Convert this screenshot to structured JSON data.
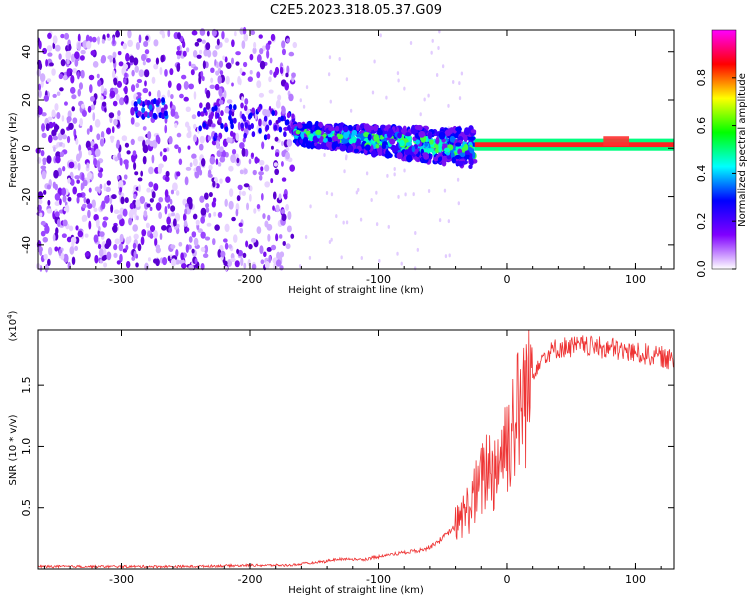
{
  "title": "C2E5.2023.318.05.37.G09",
  "chart_data": [
    {
      "type": "heatmap",
      "xlabel": "Height of straight line (km)",
      "ylabel": "Frequency (Hz)",
      "xlim": [
        -365,
        130
      ],
      "ylim": [
        -50,
        49
      ],
      "xticks": [
        -300,
        -200,
        -100,
        0,
        100
      ],
      "yticks": [
        -40,
        -20,
        0,
        20,
        40
      ],
      "colorbar": {
        "label": "Normalized spectral amplitude",
        "range": [
          0,
          1
        ],
        "ticks": [
          "0.0",
          "0.2",
          "0.4",
          "0.6",
          "0.8"
        ],
        "colors": [
          "#ffffff",
          "#8000ff",
          "#0000ff",
          "#00ffff",
          "#00ff00",
          "#ffff00",
          "#ff0000",
          "#ff00ff"
        ]
      },
      "regions": [
        {
          "x": [
            -365,
            -165
          ],
          "freq": [
            -50,
            49
          ],
          "amplitude": 0.15,
          "note": "broadband noise"
        },
        {
          "x": [
            -290,
            -265
          ],
          "freq": [
            13,
            20
          ],
          "amplitude": 0.3
        },
        {
          "x": [
            -165,
            -25
          ],
          "freq": [
            -12,
            12
          ],
          "amplitude": 0.45
        },
        {
          "x": [
            -25,
            130
          ],
          "freq": [
            0.5,
            2.5
          ],
          "amplitude": 0.95,
          "note": "carrier line"
        }
      ]
    },
    {
      "type": "line",
      "xlabel": "Height of straight line (km)",
      "ylabel": "SNR (10 * v/v)",
      "yscale_label": "(x10",
      "yscale_exp": "4",
      "yscale_close": ")",
      "xlim": [
        -365,
        130
      ],
      "ylim": [
        0,
        1.95
      ],
      "xticks": [
        -300,
        -200,
        -100,
        0,
        100
      ],
      "yticks": [
        "0.5",
        "1.0",
        "1.5"
      ],
      "ytick_values": [
        0.5,
        1.0,
        1.5
      ],
      "color": "#ee3333",
      "series": [
        {
          "x": [
            -365,
            -340,
            -300,
            -250,
            -200,
            -170,
            -150,
            -130,
            -110,
            -90,
            -70,
            -60,
            -50,
            -40,
            -30,
            -20,
            -15,
            -10,
            -5,
            0,
            5,
            10,
            15,
            20,
            25,
            30,
            40,
            60,
            80,
            90,
            100,
            110,
            120,
            130
          ],
          "values": [
            0.02,
            0.02,
            0.02,
            0.02,
            0.03,
            0.03,
            0.05,
            0.08,
            0.08,
            0.12,
            0.15,
            0.18,
            0.25,
            0.35,
            0.5,
            0.7,
            0.85,
            0.8,
            0.95,
            1.05,
            1.2,
            1.3,
            1.45,
            1.6,
            1.7,
            1.75,
            1.8,
            1.82,
            1.8,
            1.78,
            1.76,
            1.75,
            1.73,
            1.7
          ]
        }
      ]
    }
  ]
}
